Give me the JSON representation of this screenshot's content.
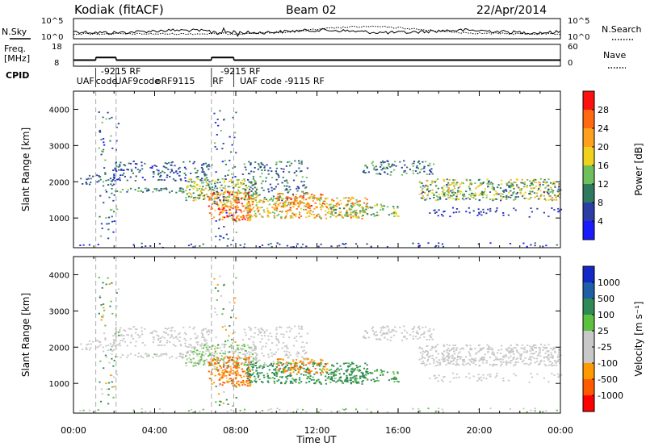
{
  "header": {
    "station": "Kodiak (fitACF)",
    "beam": "Beam 02",
    "date": "22/Apr/2014"
  },
  "side_labels": {
    "nsky": "N.Sky",
    "freq": "Freq.",
    "freq_unit": "[MHz]",
    "cpid": "CPID",
    "nsearch": "N.Search",
    "nave": "Nave"
  },
  "colors": {
    "power": [
      "#1a1aff",
      "#2c3ea3",
      "#2e7a5f",
      "#6fbf5c",
      "#f0d21c",
      "#ffa01e",
      "#ff6a10",
      "#ff1010"
    ],
    "velocity": [
      "#ff0000",
      "#ff5a00",
      "#ff9a00",
      "#c8c8c8",
      "#c8c8c8",
      "#5ec040",
      "#2f8a55",
      "#1e5fa8",
      "#1428c8"
    ],
    "cpid_color": "#000000"
  },
  "chart_data": [
    {
      "type": "line",
      "title": "N.Sky / N.Search",
      "x_range_hours": [
        0,
        24
      ],
      "y_left_ticks": [
        "10^5",
        "10^0"
      ],
      "y_right_ticks": [
        "10^5",
        "10^0"
      ]
    },
    {
      "type": "line",
      "title": "Freq. / Nave",
      "y_left_ticks": [
        "18",
        "8"
      ],
      "y_right_ticks": [
        "60",
        "0"
      ],
      "freq_segments": [
        {
          "x0": 0.0,
          "x1": 1.1,
          "y": 10.8
        },
        {
          "x0": 1.1,
          "x1": 2.1,
          "y": 12.0
        },
        {
          "x0": 2.1,
          "x1": 6.8,
          "y": 10.8
        },
        {
          "x0": 6.8,
          "x1": 7.9,
          "y": 12.0
        },
        {
          "x0": 7.9,
          "x1": 24.0,
          "y": 10.8
        }
      ]
    },
    {
      "type": "table",
      "title": "CPID",
      "labels": [
        {
          "x": 0.15,
          "text": "UAF"
        },
        {
          "x": 1.1,
          "text": "code"
        },
        {
          "x": 1.35,
          "text": "-9215 RF"
        },
        {
          "x": 2.05,
          "text": "UAF9code"
        },
        {
          "x": 4.05,
          "text": "oRF9115"
        },
        {
          "x": 6.85,
          "text": "RF"
        },
        {
          "x": 7.25,
          "text": "-9215 RF"
        },
        {
          "x": 8.2,
          "text": "UAF code -9115 RF"
        }
      ]
    },
    {
      "type": "heatmap",
      "title": "Power",
      "ylabel": "Slant Range [km]",
      "ylim": [
        180,
        4500
      ],
      "yticks": [
        1000,
        2000,
        3000,
        4000
      ],
      "colorbar_label": "Power [dB]",
      "colorbar_ticks": [
        "4",
        "8",
        "12",
        "16",
        "20",
        "24",
        "28"
      ],
      "colorbar_range": [
        0,
        32
      ]
    },
    {
      "type": "heatmap",
      "title": "Velocity",
      "ylabel": "Slant Range [km]",
      "xlabel": "Time UT",
      "xlim": [
        0,
        24
      ],
      "xticks": [
        "00:00",
        "04:00",
        "08:00",
        "12:00",
        "16:00",
        "20:00",
        "00:00"
      ],
      "ylim": [
        180,
        4500
      ],
      "yticks": [
        1000,
        2000,
        3000,
        4000
      ],
      "colorbar_label": "Velocity [m s⁻¹]",
      "colorbar_ticks": [
        "-1000",
        "-500",
        "-100",
        "-25",
        "25",
        "100",
        "500",
        "1000"
      ]
    }
  ],
  "echo_bands": [
    {
      "t0": 2.0,
      "t1": 5.6,
      "r0": 1720,
      "r1": 1850,
      "dens": 0.55,
      "p0": 6,
      "p1": 15,
      "v0": -30,
      "v1": 30
    },
    {
      "t0": 1.9,
      "t1": 6.8,
      "r0": 2050,
      "r1": 2600,
      "dens": 0.3,
      "p0": 3,
      "p1": 12,
      "v0": -20,
      "v1": 20
    },
    {
      "t0": 5.5,
      "t1": 9.0,
      "r0": 1500,
      "r1": 2100,
      "dens": 0.55,
      "p0": 8,
      "p1": 22,
      "v0": -30,
      "v1": 60
    },
    {
      "t0": 6.6,
      "t1": 8.7,
      "r0": 950,
      "r1": 1750,
      "dens": 0.6,
      "p0": 18,
      "p1": 30,
      "v0": -900,
      "v1": -200
    },
    {
      "t0": 8.3,
      "t1": 11.5,
      "r0": 1500,
      "r1": 2600,
      "dens": 0.25,
      "p0": 4,
      "p1": 14,
      "v0": -20,
      "v1": 20
    },
    {
      "t0": 8.5,
      "t1": 14.5,
      "r0": 1000,
      "r1": 1600,
      "dens": 0.5,
      "p0": 12,
      "p1": 28,
      "v0": 30,
      "v1": 400
    },
    {
      "t0": 10.0,
      "t1": 12.5,
      "r0": 1300,
      "r1": 1700,
      "dens": 0.45,
      "p0": 16,
      "p1": 30,
      "v0": -700,
      "v1": -100
    },
    {
      "t0": 12.5,
      "t1": 16.0,
      "r0": 1050,
      "r1": 1400,
      "dens": 0.4,
      "p0": 8,
      "p1": 20,
      "v0": 20,
      "v1": 300
    },
    {
      "t0": 14.2,
      "t1": 17.8,
      "r0": 2200,
      "r1": 2600,
      "dens": 0.35,
      "p0": 4,
      "p1": 14,
      "v0": -20,
      "v1": 20
    },
    {
      "t0": 17.0,
      "t1": 24.0,
      "r0": 1500,
      "r1": 2100,
      "dens": 0.55,
      "p0": 6,
      "p1": 22,
      "v0": -25,
      "v1": 25
    },
    {
      "t0": 17.5,
      "t1": 24.0,
      "r0": 1050,
      "r1": 1300,
      "dens": 0.18,
      "p0": 3,
      "p1": 8,
      "v0": -20,
      "v1": 20
    },
    {
      "t0": 1.2,
      "t1": 2.2,
      "r0": 400,
      "r1": 4000,
      "dens": 0.1,
      "p0": 2,
      "p1": 14,
      "v0": -200,
      "v1": 200
    },
    {
      "t0": 6.9,
      "t1": 8.0,
      "r0": 400,
      "r1": 4000,
      "dens": 0.1,
      "p0": 2,
      "p1": 14,
      "v0": -200,
      "v1": 200
    },
    {
      "t0": 0.0,
      "t1": 24.0,
      "r0": 200,
      "r1": 330,
      "dens": 0.12,
      "p0": 2,
      "p1": 10,
      "v0": -60,
      "v1": 60
    },
    {
      "t0": 0.3,
      "t1": 2.0,
      "r0": 1900,
      "r1": 2200,
      "dens": 0.3,
      "p0": 4,
      "p1": 10,
      "v0": -20,
      "v1": 20
    }
  ]
}
